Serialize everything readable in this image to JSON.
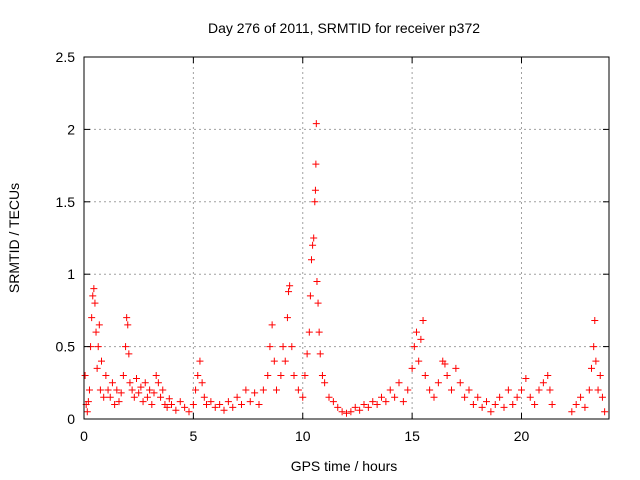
{
  "chart_data": {
    "type": "scatter",
    "title": "Day 276 of 2011, SRMTID for receiver p372",
    "xlabel": "GPS time / hours",
    "ylabel": "SRMTID / TECUs",
    "xlim": [
      0,
      24
    ],
    "ylim": [
      0,
      2.5
    ],
    "xticks": [
      0,
      5,
      10,
      15,
      20
    ],
    "xtick_labels": [
      "0",
      "5",
      "10",
      "15",
      "20"
    ],
    "yticks": [
      0,
      0.5,
      1,
      1.5,
      2,
      2.5
    ],
    "ytick_labels": [
      "0",
      "0.5",
      "1",
      "1.5",
      "2",
      "2.5"
    ],
    "grid": true,
    "marker": "+",
    "series": [
      {
        "name": "SRMTID",
        "color": "#ff0000",
        "points": [
          [
            0.05,
            0.3
          ],
          [
            0.1,
            0.1
          ],
          [
            0.15,
            0.05
          ],
          [
            0.2,
            0.12
          ],
          [
            0.25,
            0.2
          ],
          [
            0.3,
            0.5
          ],
          [
            0.35,
            0.7
          ],
          [
            0.4,
            0.85
          ],
          [
            0.45,
            0.9
          ],
          [
            0.5,
            0.8
          ],
          [
            0.55,
            0.6
          ],
          [
            0.6,
            0.35
          ],
          [
            0.65,
            0.5
          ],
          [
            0.7,
            0.65
          ],
          [
            0.75,
            0.2
          ],
          [
            0.8,
            0.4
          ],
          [
            0.9,
            0.15
          ],
          [
            1.0,
            0.3
          ],
          [
            1.1,
            0.2
          ],
          [
            1.2,
            0.15
          ],
          [
            1.3,
            0.25
          ],
          [
            1.4,
            0.1
          ],
          [
            1.5,
            0.2
          ],
          [
            1.6,
            0.12
          ],
          [
            1.7,
            0.18
          ],
          [
            1.8,
            0.3
          ],
          [
            1.9,
            0.5
          ],
          [
            1.95,
            0.7
          ],
          [
            2.0,
            0.65
          ],
          [
            2.05,
            0.45
          ],
          [
            2.1,
            0.25
          ],
          [
            2.2,
            0.2
          ],
          [
            2.3,
            0.15
          ],
          [
            2.4,
            0.28
          ],
          [
            2.5,
            0.18
          ],
          [
            2.6,
            0.22
          ],
          [
            2.7,
            0.12
          ],
          [
            2.8,
            0.25
          ],
          [
            2.9,
            0.15
          ],
          [
            3.0,
            0.2
          ],
          [
            3.1,
            0.1
          ],
          [
            3.2,
            0.18
          ],
          [
            3.3,
            0.3
          ],
          [
            3.4,
            0.25
          ],
          [
            3.5,
            0.15
          ],
          [
            3.6,
            0.2
          ],
          [
            3.7,
            0.1
          ],
          [
            3.8,
            0.08
          ],
          [
            3.9,
            0.14
          ],
          [
            4.0,
            0.1
          ],
          [
            4.2,
            0.06
          ],
          [
            4.4,
            0.12
          ],
          [
            4.6,
            0.08
          ],
          [
            4.8,
            0.05
          ],
          [
            5.0,
            0.1
          ],
          [
            5.1,
            0.2
          ],
          [
            5.2,
            0.3
          ],
          [
            5.3,
            0.4
          ],
          [
            5.4,
            0.25
          ],
          [
            5.5,
            0.15
          ],
          [
            5.6,
            0.1
          ],
          [
            5.8,
            0.12
          ],
          [
            6.0,
            0.08
          ],
          [
            6.2,
            0.1
          ],
          [
            6.4,
            0.06
          ],
          [
            6.6,
            0.12
          ],
          [
            6.8,
            0.08
          ],
          [
            7.0,
            0.15
          ],
          [
            7.2,
            0.1
          ],
          [
            7.4,
            0.2
          ],
          [
            7.6,
            0.12
          ],
          [
            7.8,
            0.18
          ],
          [
            8.0,
            0.1
          ],
          [
            8.2,
            0.2
          ],
          [
            8.4,
            0.3
          ],
          [
            8.5,
            0.5
          ],
          [
            8.6,
            0.65
          ],
          [
            8.7,
            0.4
          ],
          [
            8.8,
            0.2
          ],
          [
            9.0,
            0.3
          ],
          [
            9.1,
            0.5
          ],
          [
            9.2,
            0.4
          ],
          [
            9.3,
            0.7
          ],
          [
            9.35,
            0.88
          ],
          [
            9.4,
            0.92
          ],
          [
            9.5,
            0.5
          ],
          [
            9.6,
            0.3
          ],
          [
            9.8,
            0.2
          ],
          [
            10.0,
            0.15
          ],
          [
            10.1,
            0.3
          ],
          [
            10.2,
            0.45
          ],
          [
            10.3,
            0.6
          ],
          [
            10.35,
            0.85
          ],
          [
            10.4,
            1.1
          ],
          [
            10.45,
            1.2
          ],
          [
            10.5,
            1.25
          ],
          [
            10.55,
            1.5
          ],
          [
            10.58,
            1.58
          ],
          [
            10.6,
            1.76
          ],
          [
            10.62,
            2.04
          ],
          [
            10.65,
            0.95
          ],
          [
            10.7,
            0.8
          ],
          [
            10.75,
            0.6
          ],
          [
            10.8,
            0.45
          ],
          [
            10.9,
            0.3
          ],
          [
            11.0,
            0.25
          ],
          [
            11.2,
            0.15
          ],
          [
            11.4,
            0.12
          ],
          [
            11.6,
            0.08
          ],
          [
            11.8,
            0.05
          ],
          [
            12.0,
            0.04
          ],
          [
            12.2,
            0.05
          ],
          [
            12.4,
            0.08
          ],
          [
            12.6,
            0.06
          ],
          [
            12.8,
            0.1
          ],
          [
            13.0,
            0.08
          ],
          [
            13.2,
            0.12
          ],
          [
            13.4,
            0.1
          ],
          [
            13.6,
            0.15
          ],
          [
            13.8,
            0.12
          ],
          [
            14.0,
            0.2
          ],
          [
            14.2,
            0.15
          ],
          [
            14.4,
            0.25
          ],
          [
            14.6,
            0.12
          ],
          [
            14.8,
            0.2
          ],
          [
            15.0,
            0.35
          ],
          [
            15.1,
            0.5
          ],
          [
            15.2,
            0.6
          ],
          [
            15.3,
            0.4
          ],
          [
            15.4,
            0.55
          ],
          [
            15.5,
            0.68
          ],
          [
            15.6,
            0.3
          ],
          [
            15.8,
            0.2
          ],
          [
            16.0,
            0.15
          ],
          [
            16.2,
            0.25
          ],
          [
            16.4,
            0.4
          ],
          [
            16.5,
            0.38
          ],
          [
            16.6,
            0.3
          ],
          [
            16.8,
            0.2
          ],
          [
            17.0,
            0.35
          ],
          [
            17.2,
            0.25
          ],
          [
            17.4,
            0.15
          ],
          [
            17.6,
            0.2
          ],
          [
            17.8,
            0.1
          ],
          [
            18.0,
            0.15
          ],
          [
            18.2,
            0.08
          ],
          [
            18.4,
            0.12
          ],
          [
            18.6,
            0.05
          ],
          [
            18.8,
            0.1
          ],
          [
            19.0,
            0.15
          ],
          [
            19.2,
            0.08
          ],
          [
            19.4,
            0.2
          ],
          [
            19.6,
            0.1
          ],
          [
            19.8,
            0.15
          ],
          [
            20.0,
            0.2
          ],
          [
            20.2,
            0.28
          ],
          [
            20.4,
            0.15
          ],
          [
            20.6,
            0.1
          ],
          [
            20.8,
            0.2
          ],
          [
            21.0,
            0.25
          ],
          [
            21.2,
            0.3
          ],
          [
            21.3,
            0.2
          ],
          [
            21.4,
            0.1
          ],
          [
            22.3,
            0.05
          ],
          [
            22.5,
            0.1
          ],
          [
            22.7,
            0.15
          ],
          [
            22.9,
            0.08
          ],
          [
            23.1,
            0.2
          ],
          [
            23.2,
            0.35
          ],
          [
            23.3,
            0.5
          ],
          [
            23.35,
            0.68
          ],
          [
            23.4,
            0.4
          ],
          [
            23.5,
            0.2
          ],
          [
            23.6,
            0.3
          ],
          [
            23.7,
            0.15
          ],
          [
            23.8,
            0.05
          ]
        ]
      }
    ]
  }
}
